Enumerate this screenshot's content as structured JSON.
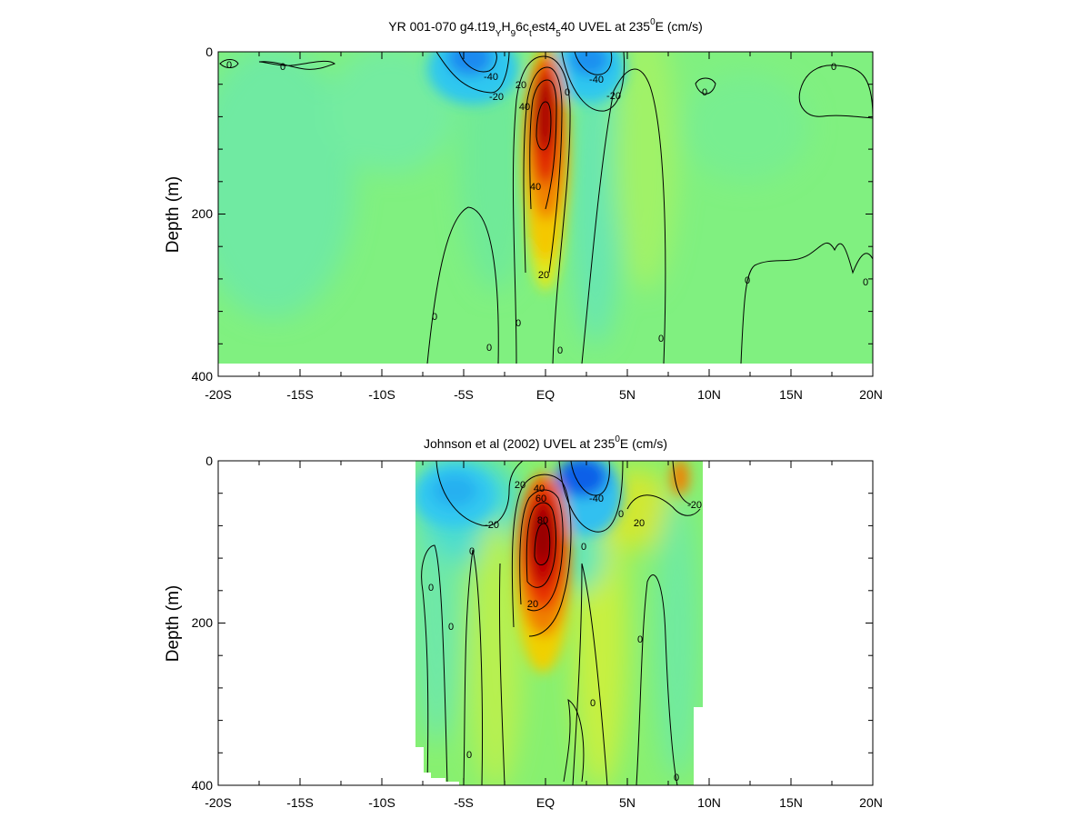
{
  "chart_data": [
    {
      "type": "heatmap",
      "title": {
        "main": "YR 001-070 g4.t19",
        "sub1": "Y",
        "mid1": "H",
        "sub2": "9",
        "mid2": "6c",
        "sub3": "t",
        "mid3": "est4",
        "sub4": "5",
        "mid4": "40 UVEL at 235",
        "sup": "0",
        "end": "E (cm/s)"
      },
      "ylabel": "Depth (m)",
      "xlabel": "",
      "x_ticks": [
        "-20S",
        "-15S",
        "-10S",
        "-5S",
        "EQ",
        "5N",
        "10N",
        "15N",
        "20N"
      ],
      "y_ticks": [
        "0",
        "200",
        "400"
      ],
      "xlim": [
        -20,
        20
      ],
      "ylim": [
        0,
        400
      ],
      "y_inverted": true,
      "data_extent": {
        "lat": [
          -20,
          20
        ],
        "depth": [
          0,
          385
        ]
      },
      "contour_labels": [
        "0",
        "0",
        "-40",
        "-20",
        "20",
        "40",
        "40",
        "20",
        "-40",
        "-20",
        "0",
        "0",
        "0",
        "0",
        "0",
        "0",
        "0",
        "0",
        "0",
        "0"
      ],
      "features": [
        {
          "kind": "eastward_core",
          "lat": -0.2,
          "depth": 120,
          "value": 100
        },
        {
          "kind": "westward_core",
          "lat": -4.5,
          "depth": 15,
          "value": -50
        },
        {
          "kind": "westward_core",
          "lat": 2.3,
          "depth": 15,
          "value": -50
        }
      ]
    },
    {
      "type": "heatmap",
      "title": {
        "main": "Johnson et al (2002) UVEL at 235",
        "sup": "0",
        "end": "E (cm/s)"
      },
      "ylabel": "Depth (m)",
      "xlabel": "",
      "x_ticks": [
        "-20S",
        "-15S",
        "-10S",
        "-5S",
        "EQ",
        "5N",
        "10N",
        "15N",
        "20N"
      ],
      "y_ticks": [
        "0",
        "200",
        "400"
      ],
      "xlim": [
        -20,
        20
      ],
      "ylim": [
        0,
        400
      ],
      "y_inverted": true,
      "data_extent": {
        "lat": [
          -8,
          9.5
        ],
        "depth": [
          0,
          400
        ]
      },
      "contour_labels": [
        "-20",
        "20",
        "40",
        "60",
        "80",
        "20",
        "-40",
        "20",
        "0",
        "0",
        "0",
        "0",
        "0",
        "0",
        "-20",
        "0",
        "0",
        "0"
      ],
      "features": [
        {
          "kind": "eastward_core",
          "lat": -0.2,
          "depth": 90,
          "value": 90
        },
        {
          "kind": "westward_core",
          "lat": 2.0,
          "depth": 15,
          "value": -55
        },
        {
          "kind": "westward_core",
          "lat": -5.0,
          "depth": 30,
          "value": -35
        }
      ]
    }
  ]
}
